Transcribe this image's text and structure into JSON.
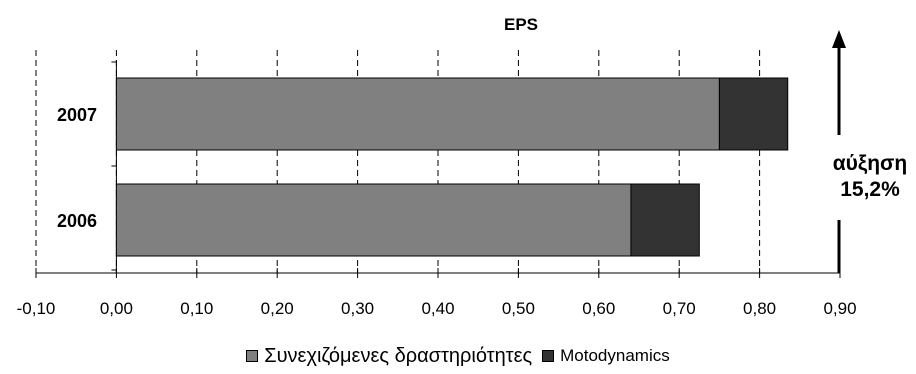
{
  "chart_data": {
    "type": "bar",
    "orientation": "horizontal",
    "stacked": true,
    "title": "EPS",
    "categories": [
      "2007",
      "2006"
    ],
    "series": [
      {
        "name": "Συνεχιζόμενες δραστηριότητες",
        "values": [
          0.75,
          0.64
        ],
        "color": "#808080"
      },
      {
        "name": "Motodynamics",
        "values": [
          0.085,
          0.085
        ],
        "color": "#333333"
      }
    ],
    "xlim": [
      -0.1,
      0.9
    ],
    "xticks": [
      "-0,10",
      "0,00",
      "0,10",
      "0,20",
      "0,30",
      "0,40",
      "0,50",
      "0,60",
      "0,70",
      "0,80",
      "0,90"
    ],
    "grid": "vertical dashed",
    "legend_position": "bottom",
    "annotation": {
      "line1": "αύξηση",
      "line2": "15,2%",
      "arrow": "up"
    }
  }
}
